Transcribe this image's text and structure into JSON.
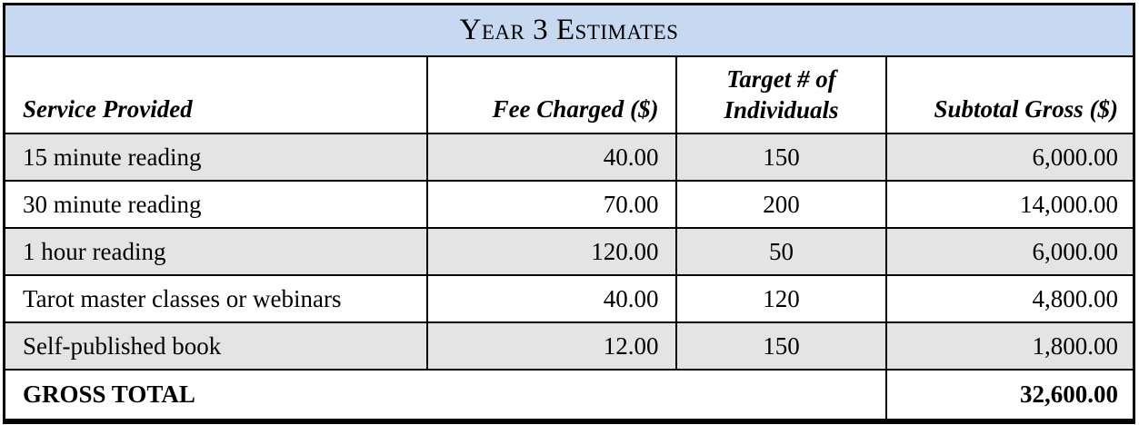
{
  "table": {
    "title": "Year 3 Estimates",
    "columns": {
      "service": "Service Provided",
      "fee": "Fee Charged ($)",
      "target_line1": "Target # of",
      "target_line2": "Individuals",
      "subtotal": "Subtotal Gross ($)"
    },
    "rows": [
      {
        "service": "15 minute reading",
        "fee": "40.00",
        "target": "150",
        "subtotal": "6,000.00"
      },
      {
        "service": "30 minute reading",
        "fee": "70.00",
        "target": "200",
        "subtotal": "14,000.00"
      },
      {
        "service": "1 hour reading",
        "fee": "120.00",
        "target": "50",
        "subtotal": "6,000.00"
      },
      {
        "service": "Tarot master classes or webinars",
        "fee": "40.00",
        "target": "120",
        "subtotal": "4,800.00"
      },
      {
        "service": "Self-published book",
        "fee": "12.00",
        "target": "150",
        "subtotal": "1,800.00"
      }
    ],
    "total": {
      "label": "GROSS TOTAL",
      "value": "32,600.00"
    },
    "colors": {
      "title_bg": "#c6d9f1",
      "row_alt_bg": "#e4e4e4",
      "row_bg": "#ffffff",
      "border": "#000000",
      "text": "#000000"
    }
  }
}
